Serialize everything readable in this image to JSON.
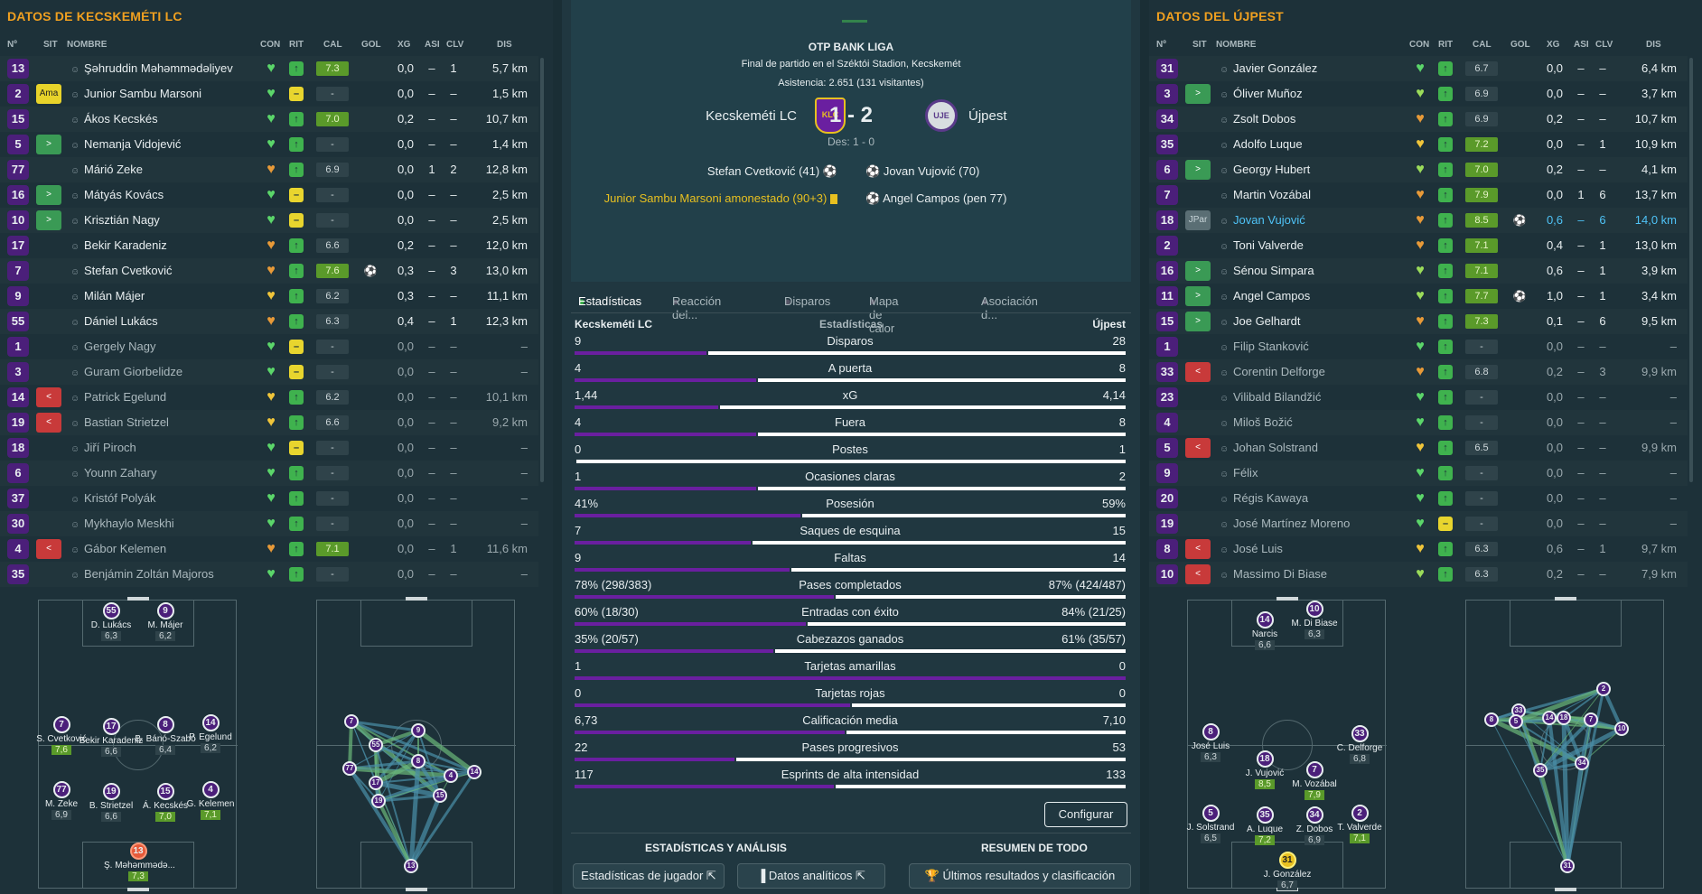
{
  "left": {
    "title": "DATOS DE KECSKEMÉTI LC",
    "headers": [
      "Nº",
      "SIT",
      "NOMBRE",
      "CON",
      "RIT",
      "CAL",
      "GOL",
      "XG",
      "ASI",
      "CLV",
      "DIS"
    ],
    "players": [
      {
        "n": "13",
        "sit": "",
        "name": "Şəhruddin Məhəmmədəliyev",
        "con": "g",
        "rit": "g",
        "cal": "7.3",
        "calg": true,
        "gol": "",
        "xg": "0,0",
        "asi": "–",
        "clv": "1",
        "dis": "5,7 km",
        "dim": false
      },
      {
        "n": "2",
        "sit": "Ama",
        "name": "Junior Sambu Marsoni",
        "con": "g",
        "rit": "y",
        "cal": "-",
        "calg": false,
        "gol": "",
        "xg": "0,0",
        "asi": "–",
        "clv": "–",
        "dis": "1,5 km",
        "dim": false
      },
      {
        "n": "15",
        "sit": "",
        "name": "Ákos Kecskés",
        "con": "g",
        "rit": "g",
        "cal": "7.0",
        "calg": true,
        "gol": "",
        "xg": "0,2",
        "asi": "–",
        "clv": "–",
        "dis": "10,7 km",
        "dim": false
      },
      {
        "n": "5",
        "sit": ">",
        "name": "Nemanja Vidojević",
        "con": "g",
        "rit": "g",
        "cal": "-",
        "calg": false,
        "gol": "",
        "xg": "0,0",
        "asi": "–",
        "clv": "–",
        "dis": "1,4 km",
        "dim": false
      },
      {
        "n": "77",
        "sit": "",
        "name": "Márió Zeke",
        "con": "o",
        "rit": "g",
        "cal": "6.9",
        "calg": false,
        "gol": "",
        "xg": "0,0",
        "asi": "1",
        "clv": "2",
        "dis": "12,8 km",
        "dim": false
      },
      {
        "n": "16",
        "sit": ">",
        "name": "Mátyás Kovács",
        "con": "g",
        "rit": "y",
        "cal": "-",
        "calg": false,
        "gol": "",
        "xg": "0,0",
        "asi": "–",
        "clv": "–",
        "dis": "2,5 km",
        "dim": false
      },
      {
        "n": "10",
        "sit": ">",
        "name": "Krisztián Nagy",
        "con": "g",
        "rit": "y",
        "cal": "-",
        "calg": false,
        "gol": "",
        "xg": "0,0",
        "asi": "–",
        "clv": "–",
        "dis": "2,5 km",
        "dim": false
      },
      {
        "n": "17",
        "sit": "",
        "name": "Bekir Karadeniz",
        "con": "o",
        "rit": "g",
        "cal": "6.6",
        "calg": false,
        "gol": "",
        "xg": "0,2",
        "asi": "–",
        "clv": "–",
        "dis": "12,0 km",
        "dim": false
      },
      {
        "n": "7",
        "sit": "",
        "name": "Stefan Cvetković",
        "con": "o",
        "rit": "g",
        "cal": "7.6",
        "calg": true,
        "gol": "⚽",
        "xg": "0,3",
        "asi": "–",
        "clv": "3",
        "dis": "13,0 km",
        "dim": false
      },
      {
        "n": "9",
        "sit": "",
        "name": "Milán Májer",
        "con": "y",
        "rit": "g",
        "cal": "6.2",
        "calg": false,
        "gol": "",
        "xg": "0,3",
        "asi": "–",
        "clv": "–",
        "dis": "11,1 km",
        "dim": false
      },
      {
        "n": "55",
        "sit": "",
        "name": "Dániel Lukács",
        "con": "o",
        "rit": "g",
        "cal": "6.3",
        "calg": false,
        "gol": "",
        "xg": "0,4",
        "asi": "–",
        "clv": "1",
        "dis": "12,3 km",
        "dim": false
      },
      {
        "n": "1",
        "sit": "",
        "name": "Gergely Nagy",
        "con": "g",
        "rit": "y",
        "cal": "-",
        "calg": false,
        "gol": "",
        "xg": "0,0",
        "asi": "–",
        "clv": "–",
        "dis": "–",
        "dim": true
      },
      {
        "n": "3",
        "sit": "",
        "name": "Guram Giorbelidze",
        "con": "g",
        "rit": "y",
        "cal": "-",
        "calg": false,
        "gol": "",
        "xg": "0,0",
        "asi": "–",
        "clv": "–",
        "dis": "–",
        "dim": true
      },
      {
        "n": "14",
        "sit": "<",
        "name": "Patrick Egelund",
        "con": "y",
        "rit": "g",
        "cal": "6.2",
        "calg": false,
        "gol": "",
        "xg": "0,0",
        "asi": "–",
        "clv": "–",
        "dis": "10,1 km",
        "dim": true
      },
      {
        "n": "19",
        "sit": "<",
        "name": "Bastian Strietzel",
        "con": "y",
        "rit": "g",
        "cal": "6.6",
        "calg": false,
        "gol": "",
        "xg": "0,0",
        "asi": "–",
        "clv": "–",
        "dis": "9,2 km",
        "dim": true
      },
      {
        "n": "18",
        "sit": "",
        "name": "Jiří Piroch",
        "con": "g",
        "rit": "y",
        "cal": "-",
        "calg": false,
        "gol": "",
        "xg": "0,0",
        "asi": "–",
        "clv": "–",
        "dis": "–",
        "dim": true
      },
      {
        "n": "6",
        "sit": "",
        "name": "Younn Zahary",
        "con": "g",
        "rit": "g",
        "cal": "-",
        "calg": false,
        "gol": "",
        "xg": "0,0",
        "asi": "–",
        "clv": "–",
        "dis": "–",
        "dim": true
      },
      {
        "n": "37",
        "sit": "",
        "name": "Kristóf Polyák",
        "con": "g",
        "rit": "g",
        "cal": "-",
        "calg": false,
        "gol": "",
        "xg": "0,0",
        "asi": "–",
        "clv": "–",
        "dis": "–",
        "dim": true
      },
      {
        "n": "30",
        "sit": "",
        "name": "Mykhaylo Meskhi",
        "con": "g",
        "rit": "g",
        "cal": "-",
        "calg": false,
        "gol": "",
        "xg": "0,0",
        "asi": "–",
        "clv": "–",
        "dis": "–",
        "dim": true
      },
      {
        "n": "4",
        "sit": "<",
        "name": "Gábor Kelemen",
        "con": "o",
        "rit": "g",
        "cal": "7.1",
        "calg": true,
        "gol": "",
        "xg": "0,0",
        "asi": "–",
        "clv": "1",
        "dis": "11,6 km",
        "dim": true
      },
      {
        "n": "35",
        "sit": "",
        "name": "Benjámin Zoltán Majoros",
        "con": "g",
        "rit": "g",
        "cal": "-",
        "calg": false,
        "gol": "",
        "xg": "0,0",
        "asi": "–",
        "clv": "–",
        "dis": "–",
        "dim": true
      }
    ],
    "formation": [
      {
        "n": "55",
        "nm": "D. Lukács",
        "rt": "6,3",
        "g": false
      },
      {
        "n": "9",
        "nm": "M. Májer",
        "rt": "6,2",
        "g": false
      },
      {
        "n": "7",
        "nm": "S. Cvetković",
        "rt": "7,6",
        "g": true
      },
      {
        "n": "17",
        "nm": "Bekir Karadeniz",
        "rt": "6,6",
        "g": false
      },
      {
        "n": "8",
        "nm": "B. Bánó-Szabó",
        "rt": "6,4",
        "g": false
      },
      {
        "n": "14",
        "nm": "P. Egelund",
        "rt": "6,2",
        "g": false
      },
      {
        "n": "77",
        "nm": "M. Zeke",
        "rt": "6,9",
        "g": false
      },
      {
        "n": "19",
        "nm": "B. Strietzel",
        "rt": "6,6",
        "g": false
      },
      {
        "n": "15",
        "nm": "Á. Kecskés",
        "rt": "7,0",
        "g": true
      },
      {
        "n": "4",
        "nm": "G. Kelemen",
        "rt": "7,1",
        "g": true
      },
      {
        "n": "13",
        "nm": "Ş. Məhəmmədə...",
        "rt": "7,3",
        "g": true
      }
    ],
    "passnet": [
      "7",
      "55",
      "9",
      "77",
      "8",
      "17",
      "4",
      "14",
      "19",
      "15",
      "13"
    ]
  },
  "match": {
    "league": "OTP BANK LIGA",
    "subtitle": "Final de partido en el Széktói Stadion, Kecskemét",
    "attendance": "Asistencia: 2.651 (131 visitantes)",
    "home": "Kecskeméti LC",
    "away": "Újpest",
    "score": "1 - 2",
    "ht": "Des: 1 - 0",
    "home_events": [
      "Stefan Cvetković (41)",
      "Junior Sambu Marsoni amonestado (90+3)"
    ],
    "away_events": [
      "Jovan Vujović (70)",
      "Angel Campos (pen 77)"
    ],
    "tabs": [
      "Estadísticas",
      "Reacción del...",
      "Disparos",
      "Mapa de calor",
      "Asociación d..."
    ],
    "stats_home": "Kecskeméti LC",
    "stats_title": "Estadísticas",
    "stats_away": "Újpest",
    "stats": [
      {
        "l": "9",
        "m": "Disparos",
        "r": "28",
        "p": 0.24
      },
      {
        "l": "4",
        "m": "A puerta",
        "r": "8",
        "p": 0.33
      },
      {
        "l": "1,44",
        "m": "xG",
        "r": "4,14",
        "p": 0.26
      },
      {
        "l": "4",
        "m": "Fuera",
        "r": "8",
        "p": 0.33
      },
      {
        "l": "0",
        "m": "Postes",
        "r": "1",
        "p": 0.0
      },
      {
        "l": "1",
        "m": "Ocasiones claras",
        "r": "2",
        "p": 0.33
      },
      {
        "l": "41%",
        "m": "Posesión",
        "r": "59%",
        "p": 0.41
      },
      {
        "l": "7",
        "m": "Saques de esquina",
        "r": "15",
        "p": 0.32
      },
      {
        "l": "9",
        "m": "Faltas",
        "r": "14",
        "p": 0.39
      },
      {
        "l": "78% (298/383)",
        "m": "Pases completados",
        "r": "87% (424/487)",
        "p": 0.47
      },
      {
        "l": "60% (18/30)",
        "m": "Entradas con éxito",
        "r": "84% (21/25)",
        "p": 0.42
      },
      {
        "l": "35% (20/57)",
        "m": "Cabezazos ganados",
        "r": "61% (35/57)",
        "p": 0.36
      },
      {
        "l": "1",
        "m": "Tarjetas amarillas",
        "r": "0",
        "p": 1.0
      },
      {
        "l": "0",
        "m": "Tarjetas rojas",
        "r": "0",
        "p": 0.5
      },
      {
        "l": "6,73",
        "m": "Calificación media",
        "r": "7,10",
        "p": 0.49
      },
      {
        "l": "22",
        "m": "Pases progresivos",
        "r": "53",
        "p": 0.29
      },
      {
        "l": "117",
        "m": "Esprints de alta intensidad",
        "r": "133",
        "p": 0.47
      }
    ],
    "configure": "Configurar",
    "foot_left": "ESTADÍSTICAS Y ANÁLISIS",
    "foot_right": "RESUMEN DE TODO",
    "btn1": "Estadísticas de jugador",
    "btn2": "Datos analíticos",
    "btn3": "Últimos resultados y clasificación",
    "colors": {
      "home": "#6a1fa0",
      "away": "#ffffff"
    }
  },
  "right": {
    "title": "DATOS DEL ÚJPEST",
    "headers": [
      "Nº",
      "SIT",
      "NOMBRE",
      "CON",
      "RIT",
      "CAL",
      "GOL",
      "XG",
      "ASI",
      "CLV",
      "DIS"
    ],
    "players": [
      {
        "n": "31",
        "sit": "",
        "name": "Javier González",
        "con": "g",
        "rit": "g",
        "cal": "6.7",
        "calg": false,
        "gol": "",
        "xg": "0,0",
        "asi": "–",
        "clv": "–",
        "dis": "6,4 km",
        "dim": false
      },
      {
        "n": "3",
        "sit": ">",
        "name": "Óliver Muñoz",
        "con": "lg",
        "rit": "g",
        "cal": "6.9",
        "calg": false,
        "gol": "",
        "xg": "0,0",
        "asi": "–",
        "clv": "–",
        "dis": "3,7 km",
        "dim": false
      },
      {
        "n": "34",
        "sit": "",
        "name": "Zsolt Dobos",
        "con": "o",
        "rit": "g",
        "cal": "6.9",
        "calg": false,
        "gol": "",
        "xg": "0,2",
        "asi": "–",
        "clv": "–",
        "dis": "10,7 km",
        "dim": false
      },
      {
        "n": "35",
        "sit": "",
        "name": "Adolfo Luque",
        "con": "y",
        "rit": "g",
        "cal": "7.2",
        "calg": true,
        "gol": "",
        "xg": "0,0",
        "asi": "–",
        "clv": "1",
        "dis": "10,9 km",
        "dim": false
      },
      {
        "n": "6",
        "sit": ">",
        "name": "Georgy Hubert",
        "con": "lg",
        "rit": "g",
        "cal": "7.0",
        "calg": true,
        "gol": "",
        "xg": "0,2",
        "asi": "–",
        "clv": "–",
        "dis": "4,1 km",
        "dim": false
      },
      {
        "n": "7",
        "sit": "",
        "name": "Martin Vozábal",
        "con": "o",
        "rit": "g",
        "cal": "7.9",
        "calg": true,
        "gol": "",
        "xg": "0,0",
        "asi": "1",
        "clv": "6",
        "dis": "13,7 km",
        "dim": false
      },
      {
        "n": "18",
        "sit": "JPar",
        "name": "Jovan Vujović",
        "con": "o",
        "rit": "g",
        "cal": "8.5",
        "calg": true,
        "gol": "⚽",
        "xg": "0,6",
        "asi": "–",
        "clv": "6",
        "dis": "14,0 km",
        "dim": false,
        "hl": true
      },
      {
        "n": "2",
        "sit": "",
        "name": "Toni Valverde",
        "con": "o",
        "rit": "g",
        "cal": "7.1",
        "calg": true,
        "gol": "",
        "xg": "0,4",
        "asi": "–",
        "clv": "1",
        "dis": "13,0 km",
        "dim": false
      },
      {
        "n": "16",
        "sit": ">",
        "name": "Sénou Simpara",
        "con": "lg",
        "rit": "g",
        "cal": "7.1",
        "calg": true,
        "gol": "",
        "xg": "0,6",
        "asi": "–",
        "clv": "1",
        "dis": "3,9 km",
        "dim": false
      },
      {
        "n": "11",
        "sit": ">",
        "name": "Angel Campos",
        "con": "lg",
        "rit": "g",
        "cal": "7.7",
        "calg": true,
        "gol": "⚽",
        "xg": "1,0",
        "asi": "–",
        "clv": "1",
        "dis": "3,4 km",
        "dim": false
      },
      {
        "n": "15",
        "sit": ">",
        "name": "Joe Gelhardt",
        "con": "o",
        "rit": "g",
        "cal": "7.3",
        "calg": true,
        "gol": "",
        "xg": "0,1",
        "asi": "–",
        "clv": "6",
        "dis": "9,5 km",
        "dim": false
      },
      {
        "n": "1",
        "sit": "",
        "name": "Filip Stanković",
        "con": "g",
        "rit": "g",
        "cal": "-",
        "calg": false,
        "gol": "",
        "xg": "0,0",
        "asi": "–",
        "clv": "–",
        "dis": "–",
        "dim": true
      },
      {
        "n": "33",
        "sit": "<",
        "name": "Corentin Delforge",
        "con": "o",
        "rit": "g",
        "cal": "6.8",
        "calg": false,
        "gol": "",
        "xg": "0,2",
        "asi": "–",
        "clv": "3",
        "dis": "9,9 km",
        "dim": true
      },
      {
        "n": "23",
        "sit": "",
        "name": "Vilibald Bilandžić",
        "con": "g",
        "rit": "g",
        "cal": "-",
        "calg": false,
        "gol": "",
        "xg": "0,0",
        "asi": "–",
        "clv": "–",
        "dis": "–",
        "dim": true
      },
      {
        "n": "4",
        "sit": "",
        "name": "Miloš Božić",
        "con": "g",
        "rit": "g",
        "cal": "-",
        "calg": false,
        "gol": "",
        "xg": "0,0",
        "asi": "–",
        "clv": "–",
        "dis": "–",
        "dim": true
      },
      {
        "n": "5",
        "sit": "<",
        "name": "Johan Solstrand",
        "con": "y",
        "rit": "g",
        "cal": "6.5",
        "calg": false,
        "gol": "",
        "xg": "0,0",
        "asi": "–",
        "clv": "–",
        "dis": "9,9 km",
        "dim": true
      },
      {
        "n": "9",
        "sit": "",
        "name": "Félix",
        "con": "g",
        "rit": "g",
        "cal": "-",
        "calg": false,
        "gol": "",
        "xg": "0,0",
        "asi": "–",
        "clv": "–",
        "dis": "–",
        "dim": true
      },
      {
        "n": "20",
        "sit": "",
        "name": "Régis Kawaya",
        "con": "g",
        "rit": "g",
        "cal": "-",
        "calg": false,
        "gol": "",
        "xg": "0,0",
        "asi": "–",
        "clv": "–",
        "dis": "–",
        "dim": true
      },
      {
        "n": "19",
        "sit": "",
        "name": "José Martínez Moreno",
        "con": "g",
        "rit": "y",
        "cal": "-",
        "calg": false,
        "gol": "",
        "xg": "0,0",
        "asi": "–",
        "clv": "–",
        "dis": "–",
        "dim": true
      },
      {
        "n": "8",
        "sit": "<",
        "name": "José Luis",
        "con": "y",
        "rit": "g",
        "cal": "6.3",
        "calg": false,
        "gol": "",
        "xg": "0,6",
        "asi": "–",
        "clv": "1",
        "dis": "9,7 km",
        "dim": true
      },
      {
        "n": "10",
        "sit": "<",
        "name": "Massimo Di Biase",
        "con": "lg",
        "rit": "g",
        "cal": "6.3",
        "calg": false,
        "gol": "",
        "xg": "0,2",
        "asi": "–",
        "clv": "–",
        "dis": "7,9 km",
        "dim": true
      }
    ],
    "formation": [
      {
        "n": "14",
        "nm": "Narcis",
        "rt": "6,6",
        "g": false
      },
      {
        "n": "10",
        "nm": "M. Di Biase",
        "rt": "6,3",
        "g": false
      },
      {
        "n": "8",
        "nm": "José Luis",
        "rt": "6,3",
        "g": false
      },
      {
        "n": "33",
        "nm": "C. Delforge",
        "rt": "6,8",
        "g": false
      },
      {
        "n": "18",
        "nm": "J. Vujović",
        "rt": "8,5",
        "g": true
      },
      {
        "n": "7",
        "nm": "M. Vozábal",
        "rt": "7,9",
        "g": true
      },
      {
        "n": "5",
        "nm": "J. Solstrand",
        "rt": "6,5",
        "g": false
      },
      {
        "n": "35",
        "nm": "A. Luque",
        "rt": "7,2",
        "g": true
      },
      {
        "n": "34",
        "nm": "Z. Dobos",
        "rt": "6,9",
        "g": false
      },
      {
        "n": "2",
        "nm": "T. Valverde",
        "rt": "7,1",
        "g": true
      },
      {
        "n": "31",
        "nm": "J. González",
        "rt": "6,7",
        "g": false
      }
    ],
    "passnet": [
      "8",
      "33",
      "5",
      "14",
      "18",
      "7",
      "10",
      "2",
      "35",
      "34",
      "31"
    ]
  }
}
